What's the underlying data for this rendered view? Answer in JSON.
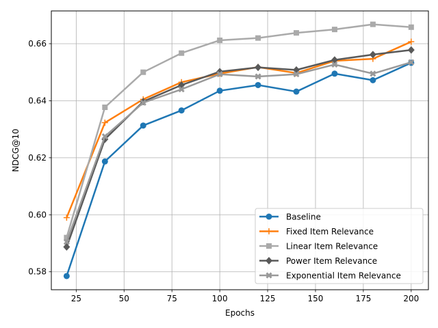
{
  "chart_data": {
    "type": "line",
    "title": "",
    "xlabel": "Epochs",
    "ylabel": "NDCG@10",
    "xlim": [
      12,
      209
    ],
    "ylim": [
      0.5737,
      0.6715
    ],
    "grid": true,
    "legend_position": "bottom-right",
    "x": [
      20,
      40,
      60,
      80,
      100,
      120,
      140,
      160,
      180,
      200
    ],
    "xticks": [
      25,
      50,
      75,
      100,
      125,
      150,
      175,
      200
    ],
    "xtick_labels": [
      "25",
      "50",
      "75",
      "100",
      "125",
      "150",
      "175",
      "200"
    ],
    "yticks": [
      0.58,
      0.6,
      0.62,
      0.64,
      0.66
    ],
    "ytick_labels": [
      "0.58",
      "0.60",
      "0.62",
      "0.64",
      "0.66"
    ],
    "series": [
      {
        "name": "Baseline",
        "color": "#1f77b4",
        "marker": "circle",
        "values": [
          0.5785,
          0.6187,
          0.6313,
          0.6366,
          0.6435,
          0.6455,
          0.6432,
          0.6495,
          0.6472,
          0.6533
        ]
      },
      {
        "name": "Fixed Item Relevance",
        "color": "#ff7f0e",
        "marker": "plus",
        "values": [
          0.599,
          0.6323,
          0.6405,
          0.6465,
          0.6495,
          0.6518,
          0.6497,
          0.654,
          0.6547,
          0.6607
        ]
      },
      {
        "name": "Linear Item Relevance",
        "color": "#aaaaaa",
        "marker": "square",
        "values": [
          0.592,
          0.6377,
          0.65,
          0.6567,
          0.6612,
          0.662,
          0.6638,
          0.665,
          0.6668,
          0.6658
        ]
      },
      {
        "name": "Power Item Relevance",
        "color": "#595959",
        "marker": "diamond",
        "values": [
          0.5887,
          0.6265,
          0.6397,
          0.6455,
          0.6502,
          0.6517,
          0.6508,
          0.6543,
          0.6562,
          0.6578
        ]
      },
      {
        "name": "Exponential Item Relevance",
        "color": "#999999",
        "marker": "x",
        "values": [
          0.5905,
          0.6275,
          0.6393,
          0.644,
          0.6493,
          0.6485,
          0.6493,
          0.6527,
          0.6495,
          0.6535
        ]
      }
    ]
  }
}
